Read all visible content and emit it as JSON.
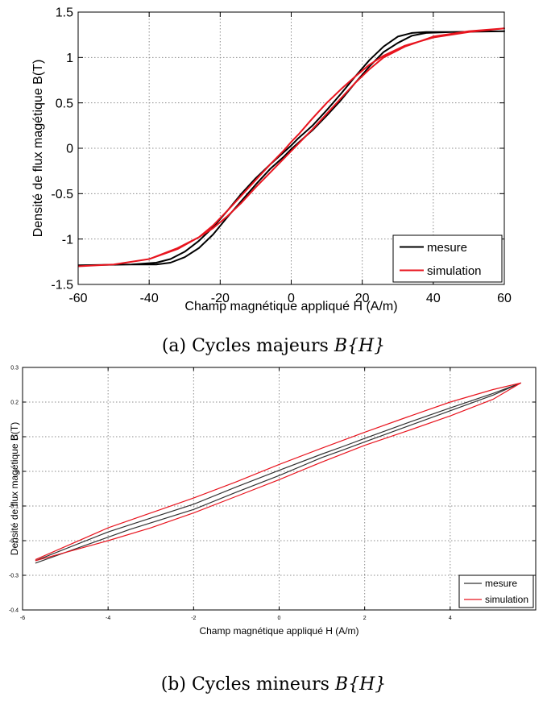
{
  "captions": {
    "a_text": "(a) Cycles majeurs ",
    "a_math": "B{H}",
    "b_text": "(b) Cycles mineurs ",
    "b_math": "B{H}"
  },
  "chart_data": [
    {
      "id": "a",
      "type": "line",
      "title": "",
      "xlabel": "Champ magnétique appliqué H (A/m)",
      "ylabel": "Densité de flux magétique B(T)",
      "xlim": [
        -60,
        60
      ],
      "ylim": [
        -1.5,
        1.5
      ],
      "xticks": [
        -60,
        -40,
        -20,
        0,
        20,
        40,
        60
      ],
      "yticks": [
        -1.5,
        -1,
        -0.5,
        0,
        0.5,
        1,
        1.5
      ],
      "xtick_labels": [
        "-60",
        "-40",
        "-20",
        "0",
        "20",
        "40",
        "60"
      ],
      "ytick_labels": [
        "-1.5",
        "-1",
        "-0.5",
        "0",
        "0.5",
        "1",
        "1.5"
      ],
      "grid": true,
      "legend": "bottom-right",
      "colors": {
        "mesure": "#000000",
        "simulation": "#e8141e"
      },
      "series": [
        {
          "name": "mesure",
          "x": [
            -60,
            -45,
            -38,
            -34,
            -30,
            -26,
            -22,
            -18,
            -14,
            -10,
            -6,
            -2,
            0,
            2,
            6,
            10,
            14,
            18,
            22,
            26,
            30,
            34,
            38,
            45,
            60,
            45,
            38,
            34,
            30,
            26,
            22,
            18,
            14,
            10,
            6,
            2,
            0,
            -2,
            -6,
            -10,
            -14,
            -18,
            -22,
            -26,
            -30,
            -34,
            -38,
            -45,
            -60
          ],
          "y": [
            -1.29,
            -1.28,
            -1.26,
            -1.22,
            -1.14,
            -1.02,
            -0.87,
            -0.69,
            -0.5,
            -0.33,
            -0.18,
            -0.04,
            0.03,
            0.11,
            0.25,
            0.42,
            0.6,
            0.79,
            0.97,
            1.12,
            1.23,
            1.27,
            1.28,
            1.28,
            1.29,
            1.28,
            1.27,
            1.24,
            1.16,
            1.06,
            0.9,
            0.72,
            0.53,
            0.36,
            0.2,
            0.06,
            -0.01,
            -0.09,
            -0.23,
            -0.4,
            -0.58,
            -0.76,
            -0.95,
            -1.1,
            -1.2,
            -1.26,
            -1.28,
            -1.28,
            -1.29
          ]
        },
        {
          "name": "simulation",
          "x": [
            -60,
            -50,
            -40,
            -32,
            -26,
            -22,
            -18,
            -14,
            -10,
            -6,
            -2,
            0,
            2,
            6,
            10,
            14,
            18,
            22,
            26,
            32,
            40,
            50,
            60,
            50,
            40,
            32,
            26,
            22,
            18,
            14,
            10,
            6,
            2,
            0,
            -2,
            -6,
            -10,
            -14,
            -18,
            -22,
            -26,
            -32,
            -40,
            -50,
            -60
          ],
          "y": [
            -1.3,
            -1.28,
            -1.22,
            -1.1,
            -0.98,
            -0.88,
            -0.75,
            -0.6,
            -0.43,
            -0.27,
            -0.11,
            -0.03,
            0.05,
            0.21,
            0.38,
            0.55,
            0.72,
            0.87,
            1.0,
            1.12,
            1.23,
            1.29,
            1.32,
            1.28,
            1.22,
            1.13,
            1.02,
            0.92,
            0.79,
            0.65,
            0.5,
            0.33,
            0.15,
            0.07,
            -0.02,
            -0.18,
            -0.35,
            -0.52,
            -0.69,
            -0.85,
            -0.98,
            -1.11,
            -1.22,
            -1.28,
            -1.3
          ]
        }
      ]
    },
    {
      "id": "b",
      "type": "line",
      "title": "",
      "xlabel": "Champ magnétique appliqué H (A/m)",
      "ylabel": "Densité de flux magétique B(T)",
      "xlim": [
        -6,
        6
      ],
      "ylim": [
        -0.4,
        0.3
      ],
      "xticks": [
        -6,
        -4,
        -2,
        0,
        2,
        4
      ],
      "yticks": [
        -0.4,
        -0.3,
        -0.2,
        -0.1,
        0,
        0.1,
        0.2,
        0.3
      ],
      "xtick_labels": [
        "-6",
        "-4",
        "-2",
        "0",
        "2",
        "4"
      ],
      "ytick_labels": [
        "-0.4",
        "-0.3",
        "-0.2",
        "-0.1",
        "0",
        "0.1",
        "0.2",
        "0.3"
      ],
      "grid": true,
      "legend": "bottom-right",
      "colors": {
        "mesure": "#333333",
        "simulation": "#e8141e"
      },
      "series": [
        {
          "name": "mesure",
          "x": [
            -5.7,
            -4,
            -3.5,
            -2,
            -1,
            0,
            1,
            1.5,
            2,
            3,
            4,
            5,
            5.65,
            5,
            4,
            3,
            2,
            1.5,
            1,
            0,
            -1,
            -2,
            -3.5,
            -4,
            -5.7
          ],
          "y": [
            -0.265,
            -0.19,
            -0.168,
            -0.11,
            -0.06,
            -0.012,
            0.04,
            0.062,
            0.085,
            0.13,
            0.175,
            0.22,
            0.255,
            0.225,
            0.183,
            0.14,
            0.095,
            0.072,
            0.05,
            0.003,
            -0.045,
            -0.095,
            -0.155,
            -0.175,
            -0.258
          ]
        },
        {
          "name": "simulation",
          "x": [
            -5.7,
            -4,
            -3,
            -2,
            -1,
            0,
            1,
            2,
            3,
            4,
            5,
            5.65,
            5,
            4,
            3,
            2,
            1,
            0,
            -1,
            -2,
            -3,
            -4,
            -5.7
          ],
          "y": [
            -0.258,
            -0.2,
            -0.163,
            -0.12,
            -0.072,
            -0.024,
            0.027,
            0.075,
            0.117,
            0.16,
            0.208,
            0.255,
            0.236,
            0.2,
            0.157,
            0.113,
            0.067,
            0.02,
            -0.03,
            -0.077,
            -0.12,
            -0.163,
            -0.255
          ]
        }
      ]
    }
  ]
}
